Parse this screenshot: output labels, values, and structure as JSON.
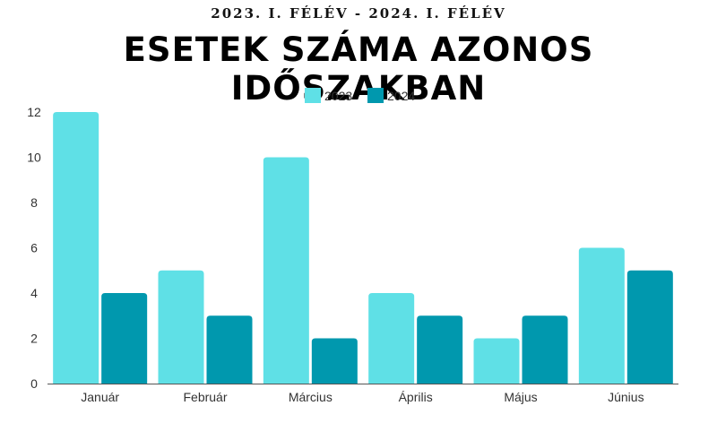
{
  "colors": {
    "series_2023": "#5fe0e6",
    "series_2024": "#0098ae"
  },
  "chart_data": {
    "type": "bar",
    "subtitle": "2023. I. FÉLÉV - 2024. I. FÉLÉV",
    "title": "ESETEK SZÁMA AZONOS IDŐSZAKBAN",
    "categories": [
      "Január",
      "Február",
      "Március",
      "Április",
      "Május",
      "Június"
    ],
    "series": [
      {
        "name": "2023",
        "values": [
          12,
          5,
          10,
          4,
          2,
          6
        ]
      },
      {
        "name": "2024",
        "values": [
          4,
          3,
          2,
          3,
          3,
          5
        ]
      }
    ],
    "ylim": [
      0,
      12
    ],
    "yticks": [
      0,
      2,
      4,
      6,
      8,
      10,
      12
    ],
    "legend_position": "top-center",
    "grid": false
  }
}
